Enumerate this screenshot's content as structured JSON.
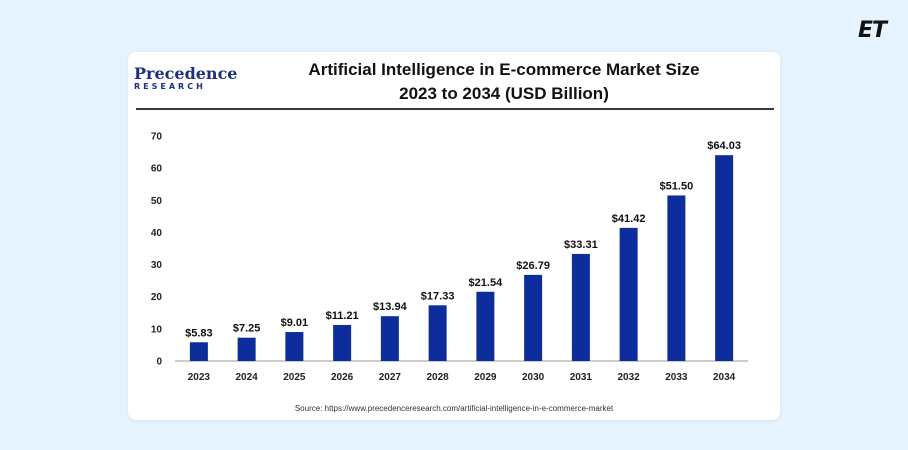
{
  "badge": {
    "logo_text": "ET"
  },
  "brand": {
    "name": "Precedence",
    "sub": "RESEARCH"
  },
  "chart_data": {
    "type": "bar",
    "title": "Artificial Intelligence in E-commerce Market Size",
    "subtitle": "2023 to 2034 (USD Billion)",
    "categories": [
      "2023",
      "2024",
      "2025",
      "2026",
      "2027",
      "2028",
      "2029",
      "2030",
      "2031",
      "2032",
      "2033",
      "2034"
    ],
    "values": [
      5.83,
      7.25,
      9.01,
      11.21,
      13.94,
      17.33,
      21.54,
      26.79,
      33.31,
      41.42,
      51.5,
      64.03
    ],
    "data_labels": [
      "$5.83",
      "$7.25",
      "$9.01",
      "$11.21",
      "$13.94",
      "$17.33",
      "$21.54",
      "$26.79",
      "$33.31",
      "$41.42",
      "$51.50",
      "$64.03"
    ],
    "ylim": [
      0,
      70
    ],
    "yticks": [
      0,
      10,
      20,
      30,
      40,
      50,
      60,
      70
    ],
    "xlabel": "",
    "ylabel": "",
    "grid": false,
    "bar_color": "#0c2d9b",
    "source": "Source: https://www.precedenceresearch.com/artificial-intelligence-in-e-commerce-market"
  }
}
